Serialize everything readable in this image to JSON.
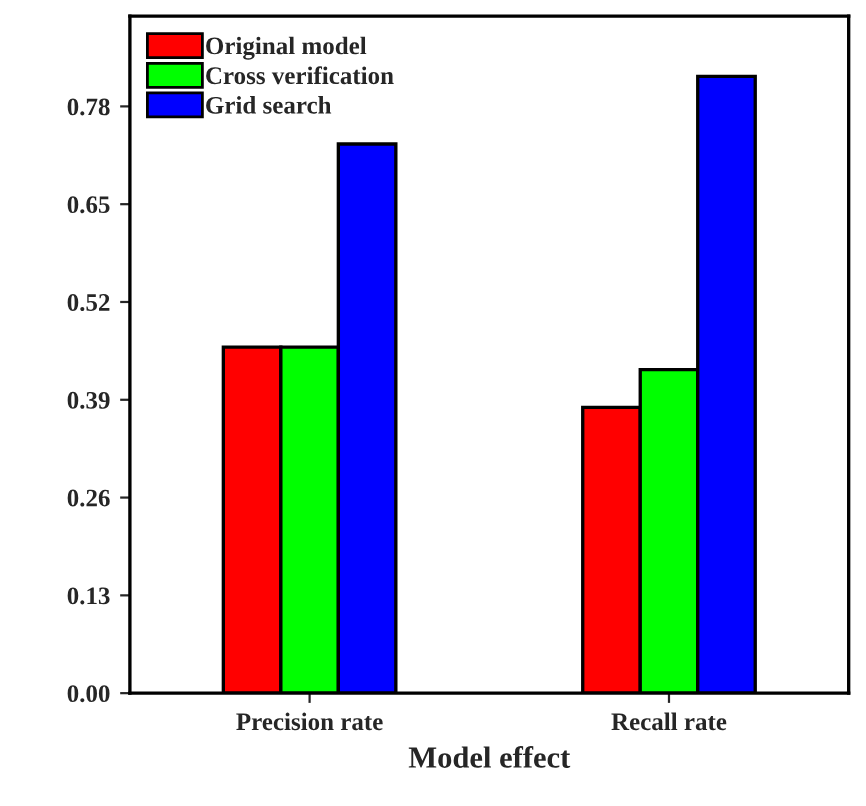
{
  "chart_data": {
    "type": "bar",
    "xlabel": "Model effect",
    "categories": [
      "Precision rate",
      "Recall rate"
    ],
    "series": [
      {
        "name": "Original model",
        "color": "#ff0000",
        "values": [
          0.46,
          0.38
        ]
      },
      {
        "name": "Cross verification",
        "color": "#00ff00",
        "values": [
          0.46,
          0.43
        ]
      },
      {
        "name": "Grid search",
        "color": "#0000ff",
        "values": [
          0.73,
          0.82
        ]
      }
    ],
    "ylim": [
      0,
      0.9
    ],
    "yticks": [
      {
        "value": 0,
        "label": "0.00"
      },
      0.13,
      0.26,
      0.39,
      0.52,
      0.65,
      0.78
    ],
    "grid": false,
    "legend": "top left"
  }
}
